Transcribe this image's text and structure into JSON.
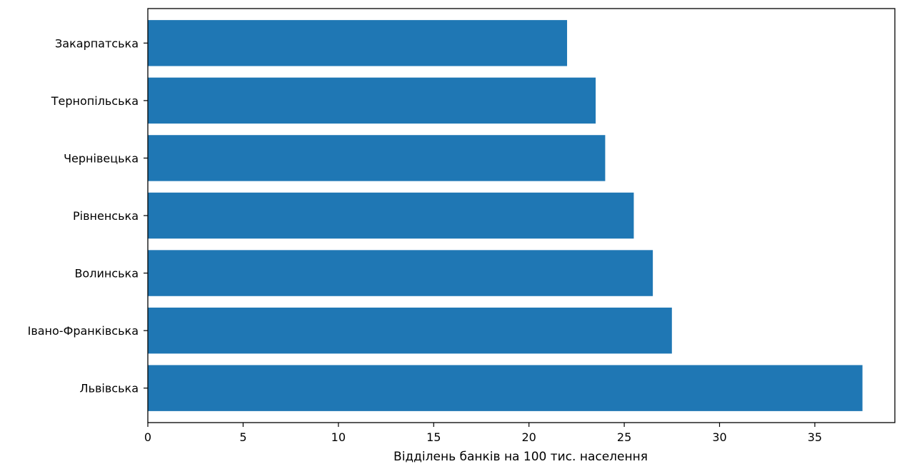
{
  "chart_data": {
    "type": "bar",
    "orientation": "horizontal",
    "categories": [
      "Львівська",
      "Івано-Франківська",
      "Волинська",
      "Рівненська",
      "Чернівецька",
      "Тернопільська",
      "Закарпатська"
    ],
    "values": [
      37.5,
      27.5,
      26.5,
      25.5,
      24,
      23.5,
      22
    ],
    "xlabel": "Відділень банків на 100 тис. населення",
    "ylabel": "",
    "title": "",
    "xlim": [
      0,
      39.2
    ],
    "xticks": [
      0,
      5,
      10,
      15,
      20,
      25,
      30,
      35
    ],
    "grid": false,
    "bar_color": "#1f77b4"
  }
}
